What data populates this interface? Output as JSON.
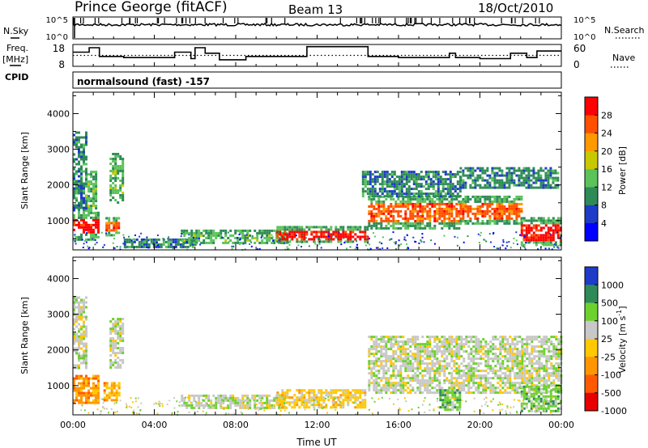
{
  "header": {
    "station": "Prince George (fitACF)",
    "beam": "Beam 13",
    "date": "18/Oct/2010"
  },
  "left_labels": {
    "nsky": "N.Sky",
    "freq_line1": "Freq.",
    "freq_line2": "[MHz]",
    "cpid": "CPID"
  },
  "right_labels": {
    "nsearch": "N.Search",
    "nave": "Nave"
  },
  "cpid_text": "normalsound (fast) -157",
  "chart_data": [
    {
      "type": "line",
      "panel": "noise",
      "left_axis": {
        "tick_labels": [
          "10^5",
          "10^0"
        ]
      },
      "right_axis": {
        "tick_labels": [
          "10^5",
          "10^0"
        ]
      },
      "series": [
        {
          "name": "N.Sky",
          "style": "solid"
        },
        {
          "name": "N.Search",
          "style": "dotted"
        }
      ]
    },
    {
      "type": "line",
      "panel": "frequency",
      "left_axis": {
        "ylim": [
          8,
          18
        ],
        "tick_labels": [
          "18",
          "8"
        ]
      },
      "right_axis": {
        "ylim": [
          0,
          60
        ],
        "tick_labels": [
          "60",
          "0"
        ]
      },
      "series": [
        {
          "name": "Freq.",
          "style": "solid",
          "units": "MHz",
          "x": [
            0,
            0.8,
            1.3,
            2.5,
            5.0,
            5.8,
            6.0,
            6.5,
            7.2,
            8.5,
            11.5,
            14.5,
            16.0,
            18.5,
            18.8,
            20.0,
            21.5,
            22.3,
            22.8,
            24
          ],
          "y": [
            14.5,
            16.5,
            12.5,
            12.0,
            14.5,
            11.5,
            16.5,
            14.0,
            11.0,
            12.5,
            17.0,
            12.5,
            12.0,
            14.0,
            12.0,
            11.5,
            14.0,
            12.0,
            15.0,
            15.0
          ]
        },
        {
          "name": "Nave",
          "style": "dotted",
          "y": [
            13,
            13
          ]
        }
      ]
    },
    {
      "type": "heatmap",
      "panel": "power",
      "xlabel": "",
      "ylabel": "Slant Range [km]",
      "xlim": [
        0,
        24
      ],
      "ylim": [
        180,
        4600
      ],
      "yticks": [
        1000,
        2000,
        3000,
        4000
      ],
      "colorbar": {
        "label": "Power [dB]",
        "ticks": [
          "4",
          "8",
          "12",
          "16",
          "20",
          "24",
          "28"
        ],
        "colors": [
          "#0000ff",
          "#1e3cc8",
          "#2e8b57",
          "#5ac35a",
          "#c8c800",
          "#ff9900",
          "#ff5000",
          "#ff0000"
        ]
      },
      "regions": [
        {
          "t0": 0.0,
          "t1": 1.3,
          "r0": 500,
          "r1": 1250,
          "level": 7
        },
        {
          "t0": 0.0,
          "t1": 0.7,
          "r0": 1300,
          "r1": 3500,
          "level": 2
        },
        {
          "t0": 0.6,
          "t1": 1.1,
          "r0": 1200,
          "r1": 2400,
          "level": 3
        },
        {
          "t0": 1.6,
          "t1": 2.3,
          "r0": 600,
          "r1": 1100,
          "level": 6
        },
        {
          "t0": 1.8,
          "t1": 2.5,
          "r0": 1500,
          "r1": 2900,
          "level": 3
        },
        {
          "t0": 2.5,
          "t1": 6.0,
          "r0": 250,
          "r1": 500,
          "level": 2
        },
        {
          "t0": 5.3,
          "t1": 10.5,
          "r0": 350,
          "r1": 750,
          "level": 3
        },
        {
          "t0": 10.0,
          "t1": 14.5,
          "r0": 400,
          "r1": 850,
          "level": 7
        },
        {
          "t0": 14.5,
          "t1": 19.0,
          "r0": 800,
          "r1": 1700,
          "level": 6
        },
        {
          "t0": 14.2,
          "t1": 19.0,
          "r0": 1700,
          "r1": 2400,
          "level": 2
        },
        {
          "t0": 19.0,
          "t1": 22.0,
          "r0": 900,
          "r1": 1700,
          "level": 6
        },
        {
          "t0": 19.0,
          "t1": 23.8,
          "r0": 1900,
          "r1": 2500,
          "level": 2
        },
        {
          "t0": 22.0,
          "t1": 24.0,
          "r0": 300,
          "r1": 1100,
          "level": 7
        }
      ]
    },
    {
      "type": "heatmap",
      "panel": "velocity",
      "xlabel": "Time UT",
      "ylabel": "Slant Range [km]",
      "xlim": [
        0,
        24
      ],
      "ylim": [
        180,
        4600
      ],
      "xticks": [
        "00:00",
        "04:00",
        "08:00",
        "12:00",
        "16:00",
        "20:00",
        "00:00"
      ],
      "yticks": [
        1000,
        2000,
        3000,
        4000
      ],
      "colorbar": {
        "label": "Velocity [m s^-1]",
        "ticks": [
          "1000",
          "500",
          "100",
          "25",
          "-25",
          "-100",
          "-500",
          "-1000"
        ],
        "colors": [
          "#1e3cc8",
          "#2e8b57",
          "#6dd12d",
          "#c8c8c8",
          "#ffc800",
          "#ff9600",
          "#ff5a00",
          "#e60000"
        ]
      },
      "regions": [
        {
          "t0": 0.0,
          "t1": 1.3,
          "r0": 500,
          "r1": 1300,
          "level": 5
        },
        {
          "t0": 0.0,
          "t1": 0.7,
          "r0": 1500,
          "r1": 3500,
          "level": 3
        },
        {
          "t0": 1.5,
          "t1": 2.3,
          "r0": 600,
          "r1": 1100,
          "level": 5
        },
        {
          "t0": 1.8,
          "t1": 2.4,
          "r0": 1500,
          "r1": 2900,
          "level": 3
        },
        {
          "t0": 5.3,
          "t1": 10.5,
          "r0": 350,
          "r1": 750,
          "level": 3
        },
        {
          "t0": 10.0,
          "t1": 14.3,
          "r0": 400,
          "r1": 900,
          "level": 4
        },
        {
          "t0": 14.5,
          "t1": 24.0,
          "r0": 800,
          "r1": 2400,
          "level": 3
        },
        {
          "t0": 18.0,
          "t1": 19.0,
          "r0": 300,
          "r1": 900,
          "level": 2
        },
        {
          "t0": 22.0,
          "t1": 24.0,
          "r0": 300,
          "r1": 1000,
          "level": 2
        }
      ]
    }
  ]
}
